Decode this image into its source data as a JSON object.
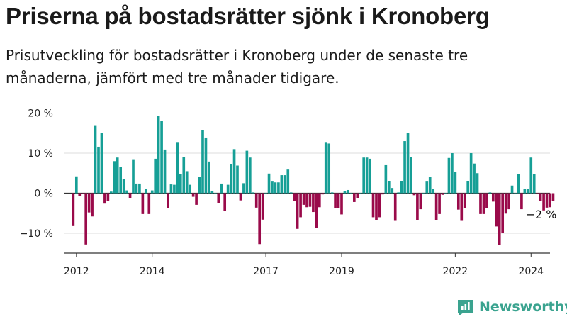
{
  "title": "Priserna på bostadsrätter sjönk i Kronoberg",
  "subtitle": "Prisutveckling för bostadsrätter i Kronoberg under de senaste tre månaderna, jämfört med tre månader tidigare.",
  "logo_text": "Newsworthy",
  "colors": {
    "positive": "#169f96",
    "negative": "#9a0a4a",
    "zero_line": "#333333",
    "grid": "#dddddd",
    "logo": "#3aa38f"
  },
  "chart_data": {
    "type": "bar",
    "x_start": "2011-09",
    "x_end": "2024-07",
    "ylim": [
      -15,
      23
    ],
    "y_ticks": [
      20,
      10,
      0,
      -10
    ],
    "y_tick_labels": [
      "20 %",
      "10 %",
      "0 %",
      "−10 %"
    ],
    "x_ticks": [
      "2012",
      "2014",
      "2017",
      "2019",
      "2022",
      "2024"
    ],
    "annotation": "−2 %",
    "series": [
      {
        "start": "2011-12",
        "values": [
          -8.2,
          4.2,
          -0.7,
          -0.2,
          -12.8,
          -4.8,
          -5.8,
          16.8,
          11.6,
          15.1,
          -2.6,
          -2.0,
          0.4,
          8.0,
          8.9,
          6.6,
          3.5,
          0.7,
          -1.3,
          8.3,
          2.4,
          2.4,
          -5.2,
          1.0,
          -5.2,
          0.7,
          8.6,
          19.3,
          18.0,
          10.9,
          -3.8,
          2.2,
          2.1,
          12.6,
          4.7,
          9.1,
          5.5,
          2.1,
          -0.9,
          -2.9,
          4.0,
          15.8,
          13.9,
          7.9,
          0.5,
          0.0,
          -2.5,
          2.4,
          -4.4,
          2.1,
          7.2,
          11.0,
          6.9,
          -1.8,
          2.5,
          10.6,
          8.9,
          0.2,
          -3.6,
          -12.7,
          -6.6,
          0.1,
          4.9,
          2.9,
          2.7,
          2.7,
          4.5,
          4.5,
          5.9,
          0.2,
          -2.0,
          -8.9,
          -6.0,
          -2.9,
          -3.5,
          -3.4,
          -4.7,
          -8.6,
          -3.5,
          -0.3,
          12.6,
          12.4,
          0.2,
          -3.7,
          -3.7,
          -5.3,
          0.6,
          0.8,
          0.1,
          -2.2,
          -1.2,
          0.0,
          8.9,
          8.9,
          8.6,
          -6.0,
          -6.7,
          -6.0,
          -0.3,
          7.0,
          3.0,
          1.3,
          -6.9,
          0.2,
          3.1,
          13.0,
          15.1,
          9.0,
          -0.5,
          -6.8,
          -4.0,
          0.1,
          2.9,
          4.0,
          1.0,
          -6.8,
          -5.2,
          -0.4,
          0.0,
          8.8,
          10.0,
          5.4,
          -4.1,
          -6.9,
          -3.8,
          3.0,
          10.0,
          7.4,
          5.0,
          -5.2,
          -5.2,
          -3.8,
          0.2,
          -2.1,
          -8.3,
          -13.0,
          -10.0,
          -5.1,
          -4.0,
          1.9,
          0.0,
          4.8,
          -4.0,
          1.0,
          1.0,
          8.9,
          4.8,
          -0.2,
          -2.0,
          -4.3,
          -3.6,
          -3.5,
          -2.0
        ]
      }
    ]
  }
}
